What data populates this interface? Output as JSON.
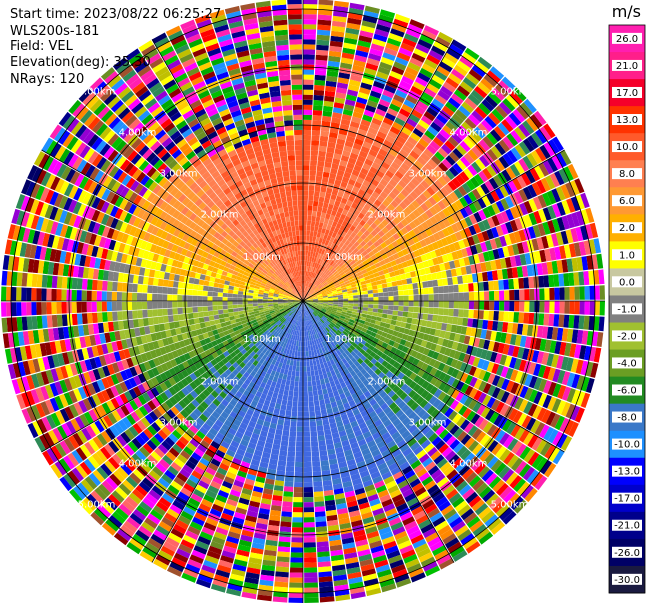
{
  "header": {
    "start_time": "Start time: 2023/08/22 06:25:27",
    "site": "WLS200s-181",
    "field": "Field: VEL",
    "elevation": "Elevation(deg): 35.30",
    "nrays": "NRays: 120"
  },
  "colorbar": {
    "unit": "m/s",
    "labels": [
      "26.0",
      "21.0",
      "17.0",
      "13.0",
      "10.0",
      "8.0",
      "6.0",
      "2.0",
      "1.0",
      "0.0",
      "-1.0",
      "-2.0",
      "-4.0",
      "-6.0",
      "-8.0",
      "-10.0",
      "-13.0",
      "-17.0",
      "-21.0",
      "-26.0",
      "-30.0"
    ],
    "colors": [
      "#ff1fb0",
      "#ff1f8a",
      "#f5002a",
      "#ff3300",
      "#ff5a2a",
      "#ff7f50",
      "#ff9933",
      "#ffb000",
      "#ffff00",
      "#c8c8a0",
      "#808080",
      "#a0c030",
      "#6b9e23",
      "#228b22",
      "#3a78c8",
      "#1e90ff",
      "#0000ff",
      "#0000cc",
      "#00008b",
      "#000066",
      "#1a1a40"
    ]
  },
  "chart_data": {
    "type": "ppi",
    "field": "VEL",
    "nrays": 120,
    "elevation_deg": 35.3,
    "range_ring_labels": [
      "1.00km",
      "2.00km",
      "3.00km",
      "4.00km",
      "5.00km"
    ],
    "range_rings_km": [
      1,
      2,
      3,
      4,
      5
    ]
  }
}
